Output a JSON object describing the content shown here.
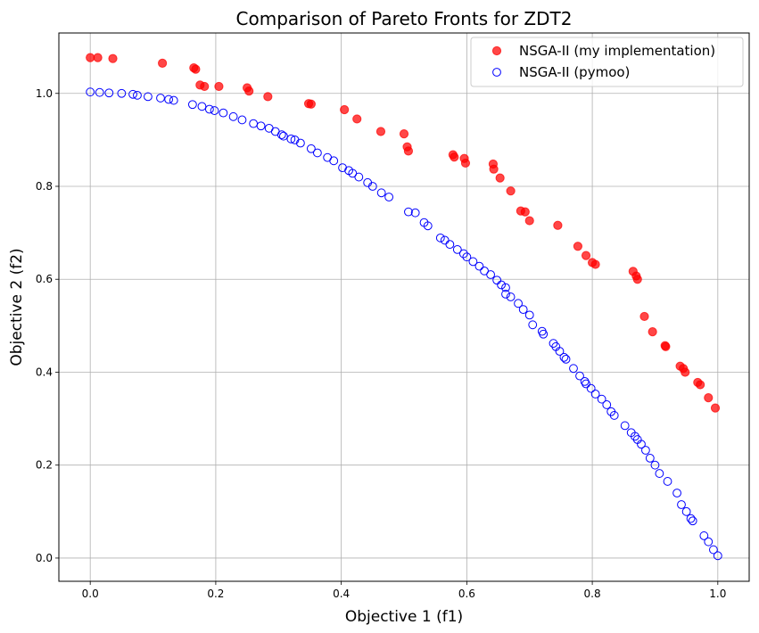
{
  "chart_data": {
    "type": "scatter",
    "title": "Comparison of Pareto Fronts for ZDT2",
    "xlabel": "Objective 1 (f1)",
    "ylabel": "Objective 2 (f2)",
    "xlim": [
      -0.05,
      1.05
    ],
    "ylim": [
      -0.05,
      1.13
    ],
    "xticks": [
      0.0,
      0.2,
      0.4,
      0.6,
      0.8,
      1.0
    ],
    "yticks": [
      0.0,
      0.2,
      0.4,
      0.6,
      0.8,
      1.0
    ],
    "xtick_labels": [
      "0.0",
      "0.2",
      "0.4",
      "0.6",
      "0.8",
      "1.0"
    ],
    "ytick_labels": [
      "0.0",
      "0.2",
      "0.4",
      "0.6",
      "0.8",
      "1.0"
    ],
    "grid": true,
    "legend_position": "top-right",
    "series": [
      {
        "name": "NSGA-II (my implementation)",
        "marker": "filled-circle",
        "color": "#ff0000",
        "x": [
          0.0,
          0.012,
          0.036,
          0.115,
          0.165,
          0.168,
          0.175,
          0.182,
          0.205,
          0.25,
          0.253,
          0.283,
          0.348,
          0.352,
          0.405,
          0.425,
          0.463,
          0.5,
          0.505,
          0.507,
          0.578,
          0.58,
          0.596,
          0.598,
          0.642,
          0.643,
          0.653,
          0.67,
          0.686,
          0.693,
          0.7,
          0.745,
          0.777,
          0.79,
          0.8,
          0.805,
          0.865,
          0.87,
          0.872,
          0.883,
          0.896,
          0.916,
          0.917,
          0.94,
          0.945,
          0.948,
          0.968,
          0.972,
          0.985,
          0.996
        ],
        "y": [
          1.077,
          1.077,
          1.075,
          1.065,
          1.055,
          1.052,
          1.018,
          1.015,
          1.015,
          1.012,
          1.005,
          0.993,
          0.978,
          0.977,
          0.965,
          0.945,
          0.918,
          0.913,
          0.885,
          0.876,
          0.868,
          0.863,
          0.86,
          0.85,
          0.848,
          0.837,
          0.818,
          0.79,
          0.747,
          0.745,
          0.726,
          0.716,
          0.671,
          0.651,
          0.636,
          0.632,
          0.617,
          0.607,
          0.6,
          0.52,
          0.487,
          0.457,
          0.455,
          0.413,
          0.408,
          0.4,
          0.378,
          0.373,
          0.345,
          0.323
        ]
      },
      {
        "name": "NSGA-II (pymoo)",
        "marker": "hollow-circle",
        "color": "#0000ff",
        "x": [
          0.0,
          0.015,
          0.03,
          0.05,
          0.068,
          0.075,
          0.092,
          0.112,
          0.125,
          0.133,
          0.163,
          0.178,
          0.19,
          0.198,
          0.212,
          0.228,
          0.242,
          0.26,
          0.272,
          0.285,
          0.295,
          0.305,
          0.308,
          0.32,
          0.326,
          0.335,
          0.352,
          0.362,
          0.378,
          0.388,
          0.402,
          0.412,
          0.418,
          0.428,
          0.442,
          0.45,
          0.464,
          0.476,
          0.507,
          0.518,
          0.532,
          0.538,
          0.558,
          0.565,
          0.573,
          0.585,
          0.595,
          0.6,
          0.61,
          0.62,
          0.628,
          0.638,
          0.648,
          0.655,
          0.662,
          0.662,
          0.67,
          0.682,
          0.69,
          0.7,
          0.705,
          0.72,
          0.722,
          0.738,
          0.742,
          0.748,
          0.755,
          0.758,
          0.77,
          0.78,
          0.788,
          0.79,
          0.798,
          0.805,
          0.815,
          0.823,
          0.83,
          0.835,
          0.852,
          0.862,
          0.868,
          0.872,
          0.878,
          0.885,
          0.892,
          0.9,
          0.907,
          0.92,
          0.935,
          0.942,
          0.95,
          0.957,
          0.96,
          0.978,
          0.985,
          0.993,
          1.0
        ],
        "y": [
          1.003,
          1.002,
          1.001,
          1.0,
          0.998,
          0.996,
          0.993,
          0.99,
          0.987,
          0.985,
          0.976,
          0.972,
          0.966,
          0.963,
          0.958,
          0.95,
          0.943,
          0.935,
          0.93,
          0.925,
          0.918,
          0.911,
          0.908,
          0.902,
          0.9,
          0.893,
          0.881,
          0.872,
          0.862,
          0.855,
          0.84,
          0.834,
          0.828,
          0.82,
          0.808,
          0.8,
          0.786,
          0.777,
          0.745,
          0.743,
          0.722,
          0.715,
          0.689,
          0.684,
          0.675,
          0.664,
          0.655,
          0.648,
          0.638,
          0.628,
          0.618,
          0.61,
          0.598,
          0.588,
          0.582,
          0.568,
          0.562,
          0.548,
          0.535,
          0.523,
          0.502,
          0.488,
          0.482,
          0.462,
          0.455,
          0.445,
          0.432,
          0.428,
          0.408,
          0.392,
          0.38,
          0.375,
          0.365,
          0.353,
          0.342,
          0.33,
          0.315,
          0.307,
          0.285,
          0.27,
          0.262,
          0.255,
          0.245,
          0.232,
          0.215,
          0.2,
          0.182,
          0.165,
          0.14,
          0.115,
          0.1,
          0.085,
          0.08,
          0.048,
          0.035,
          0.018,
          0.005
        ]
      }
    ]
  }
}
